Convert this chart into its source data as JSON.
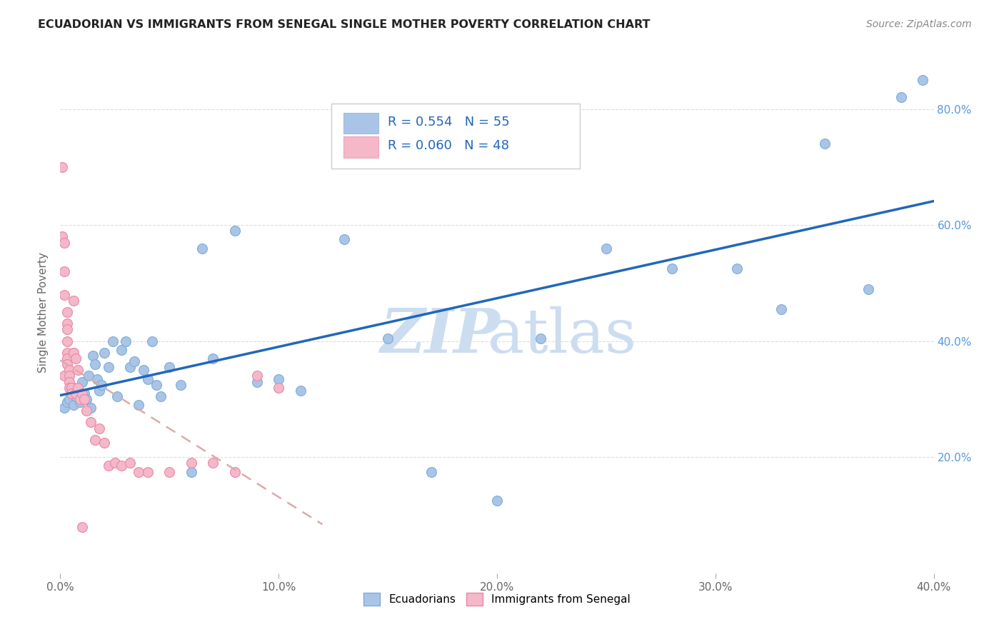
{
  "title": "ECUADORIAN VS IMMIGRANTS FROM SENEGAL SINGLE MOTHER POVERTY CORRELATION CHART",
  "source": "Source: ZipAtlas.com",
  "ylabel_label": "Single Mother Poverty",
  "R_blue": 0.554,
  "N_blue": 55,
  "R_pink": 0.06,
  "N_pink": 48,
  "blue_fill": "#aac4e8",
  "blue_edge": "#7aaed6",
  "pink_fill": "#f4b8c8",
  "pink_edge": "#e888a8",
  "trendline_blue": "#2266bb",
  "trendline_pink": "#ddaaaa",
  "watermark_color": "#ccddf0",
  "background_color": "#ffffff",
  "grid_color": "#dddddd",
  "xlim": [
    0.0,
    0.4
  ],
  "ylim": [
    0.0,
    0.9
  ],
  "xtick_vals": [
    0.0,
    0.1,
    0.2,
    0.3,
    0.4
  ],
  "xtick_labels": [
    "0.0%",
    "10.0%",
    "20.0%",
    "30.0%",
    "40.0%"
  ],
  "ytick_vals": [
    0.2,
    0.4,
    0.6,
    0.8
  ],
  "ytick_labels": [
    "20.0%",
    "40.0%",
    "60.0%",
    "80.0%"
  ],
  "blue_x": [
    0.002,
    0.003,
    0.004,
    0.005,
    0.006,
    0.006,
    0.007,
    0.008,
    0.009,
    0.01,
    0.011,
    0.012,
    0.013,
    0.014,
    0.015,
    0.016,
    0.017,
    0.018,
    0.019,
    0.02,
    0.022,
    0.024,
    0.026,
    0.028,
    0.03,
    0.032,
    0.034,
    0.036,
    0.038,
    0.04,
    0.042,
    0.044,
    0.046,
    0.05,
    0.055,
    0.06,
    0.065,
    0.07,
    0.08,
    0.09,
    0.1,
    0.11,
    0.13,
    0.15,
    0.17,
    0.2,
    0.22,
    0.25,
    0.28,
    0.31,
    0.33,
    0.35,
    0.37,
    0.385,
    0.395
  ],
  "blue_y": [
    0.285,
    0.295,
    0.3,
    0.31,
    0.29,
    0.32,
    0.305,
    0.315,
    0.295,
    0.33,
    0.31,
    0.3,
    0.34,
    0.285,
    0.375,
    0.36,
    0.335,
    0.315,
    0.325,
    0.38,
    0.355,
    0.4,
    0.305,
    0.385,
    0.4,
    0.355,
    0.365,
    0.29,
    0.35,
    0.335,
    0.4,
    0.325,
    0.305,
    0.355,
    0.325,
    0.175,
    0.56,
    0.37,
    0.59,
    0.33,
    0.335,
    0.315,
    0.575,
    0.405,
    0.175,
    0.125,
    0.405,
    0.56,
    0.525,
    0.525,
    0.455,
    0.74,
    0.49,
    0.82,
    0.85
  ],
  "pink_x": [
    0.001,
    0.001,
    0.002,
    0.002,
    0.002,
    0.002,
    0.003,
    0.003,
    0.003,
    0.003,
    0.003,
    0.003,
    0.003,
    0.004,
    0.004,
    0.004,
    0.004,
    0.005,
    0.005,
    0.005,
    0.006,
    0.006,
    0.006,
    0.007,
    0.007,
    0.008,
    0.008,
    0.009,
    0.01,
    0.011,
    0.012,
    0.014,
    0.016,
    0.018,
    0.02,
    0.022,
    0.025,
    0.028,
    0.032,
    0.036,
    0.04,
    0.05,
    0.06,
    0.07,
    0.08,
    0.09,
    0.1,
    0.01
  ],
  "pink_y": [
    0.7,
    0.58,
    0.57,
    0.52,
    0.48,
    0.34,
    0.45,
    0.43,
    0.42,
    0.4,
    0.38,
    0.37,
    0.36,
    0.35,
    0.34,
    0.33,
    0.32,
    0.32,
    0.31,
    0.31,
    0.47,
    0.38,
    0.38,
    0.37,
    0.31,
    0.35,
    0.32,
    0.3,
    0.31,
    0.3,
    0.28,
    0.26,
    0.23,
    0.25,
    0.225,
    0.185,
    0.19,
    0.185,
    0.19,
    0.175,
    0.175,
    0.175,
    0.19,
    0.19,
    0.175,
    0.34,
    0.32,
    0.08
  ]
}
